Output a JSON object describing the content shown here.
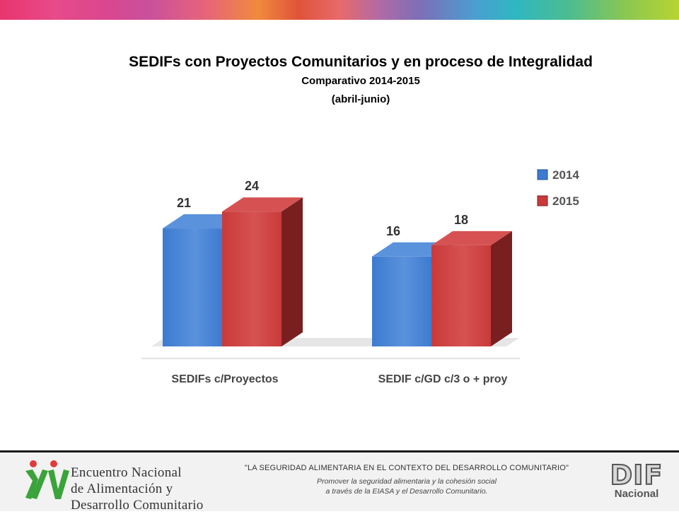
{
  "header": {
    "title": "SEDIFs con Proyectos Comunitarios y en proceso de  Integralidad",
    "subtitle": "Comparativo 2014-2015",
    "subtitle2": "(abril-junio)"
  },
  "colors": {
    "series_2014": "#3d7bd0",
    "series_2015": "#c93a3a"
  },
  "chart_data": {
    "type": "bar",
    "categories": [
      "SEDIFs c/Proyectos",
      "SEDIF c/GD c/3 o + proy"
    ],
    "series": [
      {
        "name": "2014",
        "values": [
          21,
          16
        ],
        "labels": [
          "21",
          "16"
        ]
      },
      {
        "name": "2015",
        "values": [
          24,
          18
        ],
        "labels": [
          "24",
          "18"
        ]
      }
    ],
    "ylim": [
      0,
      27
    ],
    "grid": false,
    "legend": "right",
    "style": "3d"
  },
  "footer": {
    "event_line1": "Encuentro Nacional",
    "event_line2": "de Alimentación y",
    "event_line3": "Desarrollo Comunitario",
    "quote": "\"LA SEGURIDAD ALIMENTARIA EN EL CONTEXTO DEL DESARROLLO COMUNITARIO\"",
    "tagline1": "Promover la seguridad alimentaria y la cohesión social",
    "tagline2": "a través de la EIASA y el Desarrollo Comunitario.",
    "logo_letters": "DIF",
    "logo_word": "Nacional",
    "event_logo_icon": "xv-logo-icon"
  }
}
